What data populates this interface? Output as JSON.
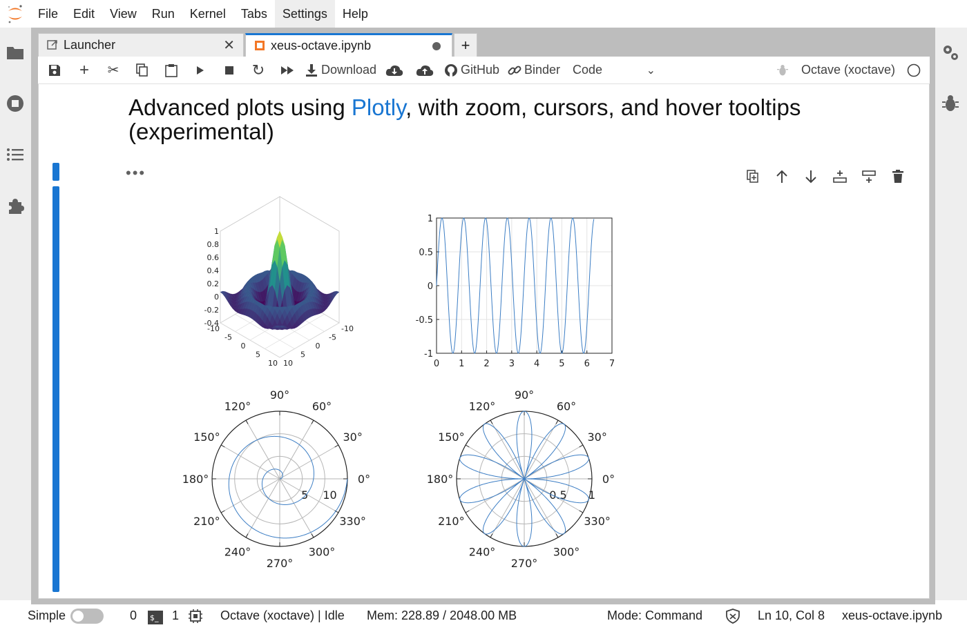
{
  "menu": [
    "File",
    "Edit",
    "View",
    "Run",
    "Kernel",
    "Tabs",
    "Settings",
    "Help"
  ],
  "tabs": [
    {
      "label": "Launcher"
    },
    {
      "label": "xeus-octave.ipynb"
    }
  ],
  "toolbar": {
    "download_label": "Download",
    "github_label": "GitHub",
    "binder_label": "Binder",
    "cell_type": "Code",
    "kernel_name": "Octave (xoctave)"
  },
  "heading": {
    "prefix": "Advanced plots using ",
    "link": "Plotly",
    "suffix": ", with zoom, cursors, and hover tooltips (experimental)"
  },
  "cell": {
    "collapsed_marker": "•••"
  },
  "status": {
    "mode_label": "Simple",
    "terminals": "0",
    "kernels": "1",
    "kernel_status": "Octave (xoctave) | Idle",
    "memory": "Mem: 228.89 / 2048.00 MB",
    "command_mode": "Mode: Command",
    "cursor": "Ln 10, Col 8",
    "filename": "xeus-octave.ipynb"
  },
  "colors": {
    "accent": "#1976d2",
    "plot_line": "#3b7dc4"
  },
  "chart_data": [
    {
      "type": "surface",
      "x_ticks": [
        "-10",
        "-5",
        "0",
        "5",
        "10"
      ],
      "y_ticks": [
        "-10",
        "-5",
        "0",
        "5",
        "10"
      ],
      "z_ticks": [
        "1",
        "0.8",
        "0.6",
        "0.4",
        "0.2",
        "0",
        "-0.2",
        "-0.4"
      ],
      "function": "sinc surface, peak 1 at center"
    },
    {
      "type": "line",
      "x_ticks": [
        "0",
        "1",
        "2",
        "3",
        "4",
        "5",
        "6",
        "7"
      ],
      "y_ticks": [
        "1",
        "0.5",
        "0",
        "-0.5",
        "-1"
      ],
      "xlim": [
        0,
        7
      ],
      "ylim": [
        -1,
        1
      ],
      "function": "sin(2*pi*x*1.15), x in [0,6.28]",
      "grid": true
    },
    {
      "type": "polar",
      "angle_labels": [
        "0°",
        "30°",
        "60°",
        "90°",
        "120°",
        "150°",
        "180°",
        "210°",
        "240°",
        "270°",
        "300°",
        "330°"
      ],
      "r_ticks": [
        "5",
        "10"
      ],
      "rlim": [
        0,
        12.6
      ],
      "function": "spiral r = theta, theta in [0, 4pi]"
    },
    {
      "type": "polar",
      "angle_labels": [
        "0°",
        "30°",
        "60°",
        "90°",
        "120°",
        "150°",
        "180°",
        "210°",
        "240°",
        "270°",
        "300°",
        "330°"
      ],
      "r_ticks": [
        "0.5",
        "1"
      ],
      "rlim": [
        0,
        1
      ],
      "function": "rose r = |sin(5 theta)|"
    }
  ]
}
